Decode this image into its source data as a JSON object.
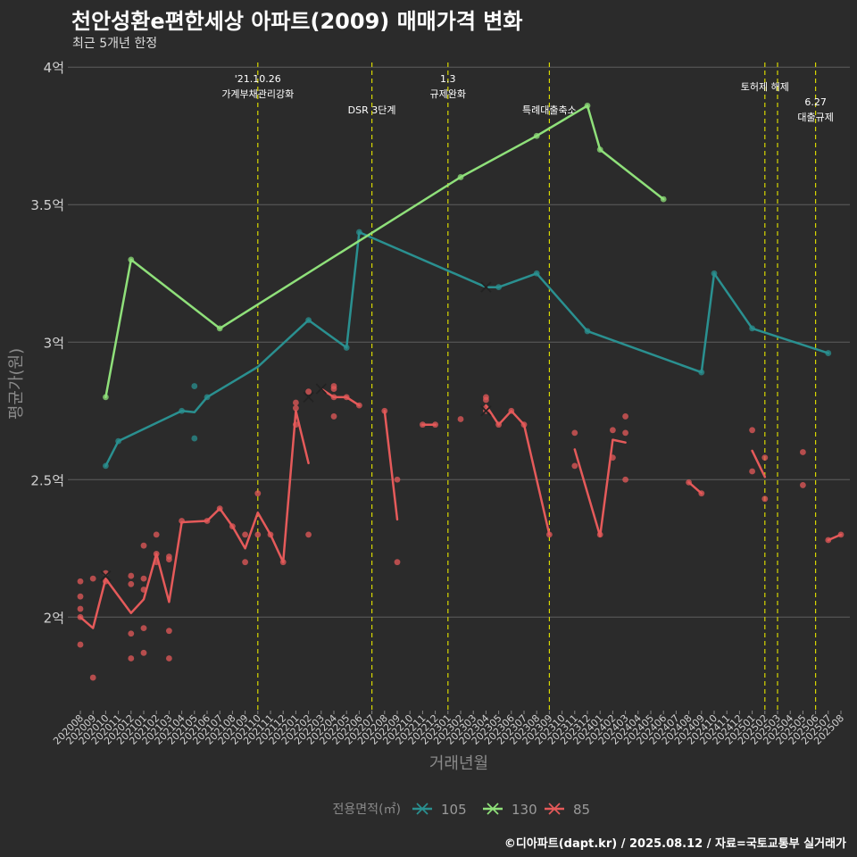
{
  "title": "천안성환e편한세상 아파트(2009) 매매가격 변화",
  "subtitle": "최근 5개년 한정",
  "caption": "©디아파트(dapt.kr) / 2025.08.12 / 자료=국토교통부 실거래가",
  "chart_data": {
    "type": "line",
    "xlabel": "거래년월",
    "ylabel": "평균가(원)",
    "y_ticks": [
      {
        "value": 200000000,
        "label": "2억"
      },
      {
        "value": 250000000,
        "label": "2.5억"
      },
      {
        "value": 300000000,
        "label": "3억"
      },
      {
        "value": 350000000,
        "label": "3.5억"
      },
      {
        "value": 400000000,
        "label": "4억"
      }
    ],
    "ylim": [
      166000000,
      403000000
    ],
    "x_categories": [
      "202008",
      "202009",
      "202010",
      "202011",
      "202012",
      "202101",
      "202102",
      "202103",
      "202104",
      "202105",
      "202106",
      "202107",
      "202108",
      "202109",
      "202110",
      "202111",
      "202112",
      "202201",
      "202202",
      "202203",
      "202204",
      "202205",
      "202206",
      "202207",
      "202208",
      "202209",
      "202210",
      "202211",
      "202212",
      "202301",
      "202302",
      "202303",
      "202304",
      "202305",
      "202306",
      "202307",
      "202308",
      "202309",
      "202310",
      "202311",
      "202312",
      "202401",
      "202402",
      "202403",
      "202404",
      "202405",
      "202406",
      "202407",
      "202408",
      "202409",
      "202410",
      "202411",
      "202412",
      "202501",
      "202502",
      "202503",
      "202504",
      "202505",
      "202506",
      "202507",
      "202508"
    ],
    "legend_title": "전용면적(㎡)",
    "legend_position": "bottom",
    "grid": true,
    "annotations": [
      {
        "x": "202110",
        "lines": [
          "'21.10.26",
          "가계부채관리강화"
        ]
      },
      {
        "x": "202207",
        "lines": [
          "DSR 3단계"
        ]
      },
      {
        "x": "202301",
        "lines": [
          "1.3",
          "규제완화"
        ]
      },
      {
        "x": "202309",
        "lines": [
          "특례대출축소"
        ]
      },
      {
        "x": "202502",
        "lines": [
          "토허제 해제"
        ]
      },
      {
        "x": "202503",
        "lines": []
      },
      {
        "x": "202506",
        "lines": [
          "6.27",
          "대출규제"
        ]
      }
    ],
    "series": [
      {
        "name": "105",
        "color": "#2a9090",
        "line": [
          [
            "202010",
            255000000
          ],
          [
            "202011",
            264000000
          ],
          [
            "202104",
            275000000
          ],
          [
            "202105",
            274500000
          ],
          [
            "202106",
            280000000
          ],
          [
            "202110",
            291000000
          ],
          [
            "202202",
            308000000
          ],
          [
            "202205",
            298000000
          ],
          [
            "202206",
            340000000
          ],
          [
            "202304",
            320000000
          ],
          [
            "202305",
            320000000
          ],
          [
            "202308",
            325000000
          ],
          [
            "202312",
            304000000
          ],
          [
            "202409",
            289000000
          ],
          [
            "202410",
            325000000
          ],
          [
            "202501",
            305000000
          ],
          [
            "202507",
            296000000
          ]
        ],
        "points": [
          [
            "202010",
            255000000
          ],
          [
            "202011",
            264000000
          ],
          [
            "202104",
            275000000
          ],
          [
            "202105",
            284000000
          ],
          [
            "202105",
            265000000
          ],
          [
            "202106",
            280000000
          ],
          [
            "202202",
            308000000
          ],
          [
            "202205",
            298000000
          ],
          [
            "202206",
            340000000
          ],
          [
            "202305",
            320000000
          ],
          [
            "202308",
            325000000
          ],
          [
            "202312",
            304000000
          ],
          [
            "202409",
            289000000
          ],
          [
            "202410",
            325000000
          ],
          [
            "202501",
            305000000
          ],
          [
            "202507",
            296000000
          ]
        ],
        "crosses": [
          [
            "202304",
            320000000
          ]
        ]
      },
      {
        "name": "130",
        "color": "#8fe07a",
        "line": [
          [
            "202010",
            280000000
          ],
          [
            "202012",
            330000000
          ],
          [
            "202107",
            305000000
          ],
          [
            "202302",
            360000000
          ],
          [
            "202308",
            375000000
          ],
          [
            "202312",
            386000000
          ],
          [
            "202401",
            370000000
          ],
          [
            "202406",
            352000000
          ]
        ],
        "points": [
          [
            "202010",
            280000000
          ],
          [
            "202012",
            330000000
          ],
          [
            "202107",
            305000000
          ],
          [
            "202302",
            360000000
          ],
          [
            "202308",
            375000000
          ],
          [
            "202312",
            386000000
          ],
          [
            "202401",
            370000000
          ],
          [
            "202406",
            352000000
          ]
        ],
        "crosses": []
      },
      {
        "name": "85",
        "color": "#e55a5a",
        "line_segments": [
          [
            [
              "202008",
              200000000
            ],
            [
              "202009",
              196000000
            ],
            [
              "202010",
              214000000
            ],
            [
              "202012",
              201500000
            ],
            [
              "202101",
              206500000
            ],
            [
              "202102",
              223000000
            ],
            [
              "202103",
              205500000
            ],
            [
              "202104",
              234500000
            ],
            [
              "202106",
              235000000
            ],
            [
              "202107",
              239500000
            ],
            [
              "202108",
              233000000
            ],
            [
              "202109",
              225000000
            ],
            [
              "202110",
              238000000
            ],
            [
              "202111",
              230000000
            ],
            [
              "202112",
              220000000
            ],
            [
              "202201",
              275000000
            ],
            [
              "202202",
              256000000
            ]
          ],
          [
            [
              "202203",
              283000000
            ],
            [
              "202204",
              280000000
            ],
            [
              "202205",
              280000000
            ],
            [
              "202206",
              277000000
            ]
          ],
          [
            [
              "202208",
              275000000
            ],
            [
              "202209",
              235500000
            ]
          ],
          [
            [
              "202211",
              270000000
            ],
            [
              "202212",
              270000000
            ]
          ],
          [
            [
              "202304",
              277000000
            ],
            [
              "202305",
              270000000
            ],
            [
              "202306",
              275000000
            ],
            [
              "202307",
              270000000
            ],
            [
              "202309",
              230000000
            ]
          ],
          [
            [
              "202311",
              261000000
            ],
            [
              "202401",
              229500000
            ],
            [
              "202402",
              264500000
            ],
            [
              "202403",
              263500000
            ]
          ],
          [
            [
              "202408",
              249000000
            ],
            [
              "202409",
              245000000
            ]
          ],
          [
            [
              "202501",
              260500000
            ],
            [
              "202502",
              251000000
            ]
          ],
          [
            [
              "202507",
              228000000
            ],
            [
              "202508",
              230000000
            ]
          ]
        ],
        "points": [
          [
            "202008",
            213000000
          ],
          [
            "202008",
            207500000
          ],
          [
            "202008",
            203000000
          ],
          [
            "202008",
            200000000
          ],
          [
            "202008",
            190000000
          ],
          [
            "202009",
            214000000
          ],
          [
            "202009",
            178000000
          ],
          [
            "202010",
            216000000
          ],
          [
            "202010",
            213000000
          ],
          [
            "202012",
            215000000
          ],
          [
            "202012",
            212000000
          ],
          [
            "202012",
            194000000
          ],
          [
            "202012",
            185000000
          ],
          [
            "202101",
            226000000
          ],
          [
            "202101",
            214000000
          ],
          [
            "202101",
            210000000
          ],
          [
            "202101",
            196000000
          ],
          [
            "202101",
            187000000
          ],
          [
            "202102",
            230000000
          ],
          [
            "202102",
            223000000
          ],
          [
            "202102",
            220000000
          ],
          [
            "202103",
            222000000
          ],
          [
            "202103",
            221000000
          ],
          [
            "202103",
            195000000
          ],
          [
            "202103",
            185000000
          ],
          [
            "202104",
            235000000
          ],
          [
            "202106",
            235000000
          ],
          [
            "202107",
            239500000
          ],
          [
            "202108",
            233000000
          ],
          [
            "202109",
            230000000
          ],
          [
            "202109",
            220000000
          ],
          [
            "202110",
            245000000
          ],
          [
            "202110",
            230000000
          ],
          [
            "202111",
            230000000
          ],
          [
            "202112",
            220000000
          ],
          [
            "202201",
            278000000
          ],
          [
            "202201",
            276000000
          ],
          [
            "202201",
            270000000
          ],
          [
            "202202",
            282000000
          ],
          [
            "202202",
            230000000
          ],
          [
            "202204",
            284000000
          ],
          [
            "202204",
            283000000
          ],
          [
            "202204",
            280000000
          ],
          [
            "202204",
            273000000
          ],
          [
            "202205",
            280000000
          ],
          [
            "202206",
            277000000
          ],
          [
            "202208",
            275000000
          ],
          [
            "202209",
            250000000
          ],
          [
            "202209",
            220000000
          ],
          [
            "202211",
            270000000
          ],
          [
            "202212",
            270000000
          ],
          [
            "202302",
            272000000
          ],
          [
            "202304",
            280000000
          ],
          [
            "202304",
            279000000
          ],
          [
            "202304",
            276000000
          ],
          [
            "202304",
            275000000
          ],
          [
            "202305",
            270000000
          ],
          [
            "202306",
            275000000
          ],
          [
            "202307",
            270000000
          ],
          [
            "202309",
            230000000
          ],
          [
            "202311",
            267000000
          ],
          [
            "202311",
            255000000
          ],
          [
            "202401",
            230000000
          ],
          [
            "202402",
            268000000
          ],
          [
            "202402",
            258000000
          ],
          [
            "202403",
            273000000
          ],
          [
            "202403",
            267000000
          ],
          [
            "202403",
            250000000
          ],
          [
            "202408",
            249000000
          ],
          [
            "202409",
            245000000
          ],
          [
            "202501",
            268000000
          ],
          [
            "202501",
            253000000
          ],
          [
            "202502",
            258000000
          ],
          [
            "202502",
            243000000
          ],
          [
            "202505",
            260000000
          ],
          [
            "202505",
            248000000
          ],
          [
            "202507",
            228000000
          ],
          [
            "202508",
            230000000
          ]
        ],
        "crosses": [
          [
            "202010",
            215000000
          ],
          [
            "202202",
            280000000
          ],
          [
            "202203",
            283000000
          ],
          [
            "202304",
            275000000
          ]
        ]
      }
    ]
  }
}
